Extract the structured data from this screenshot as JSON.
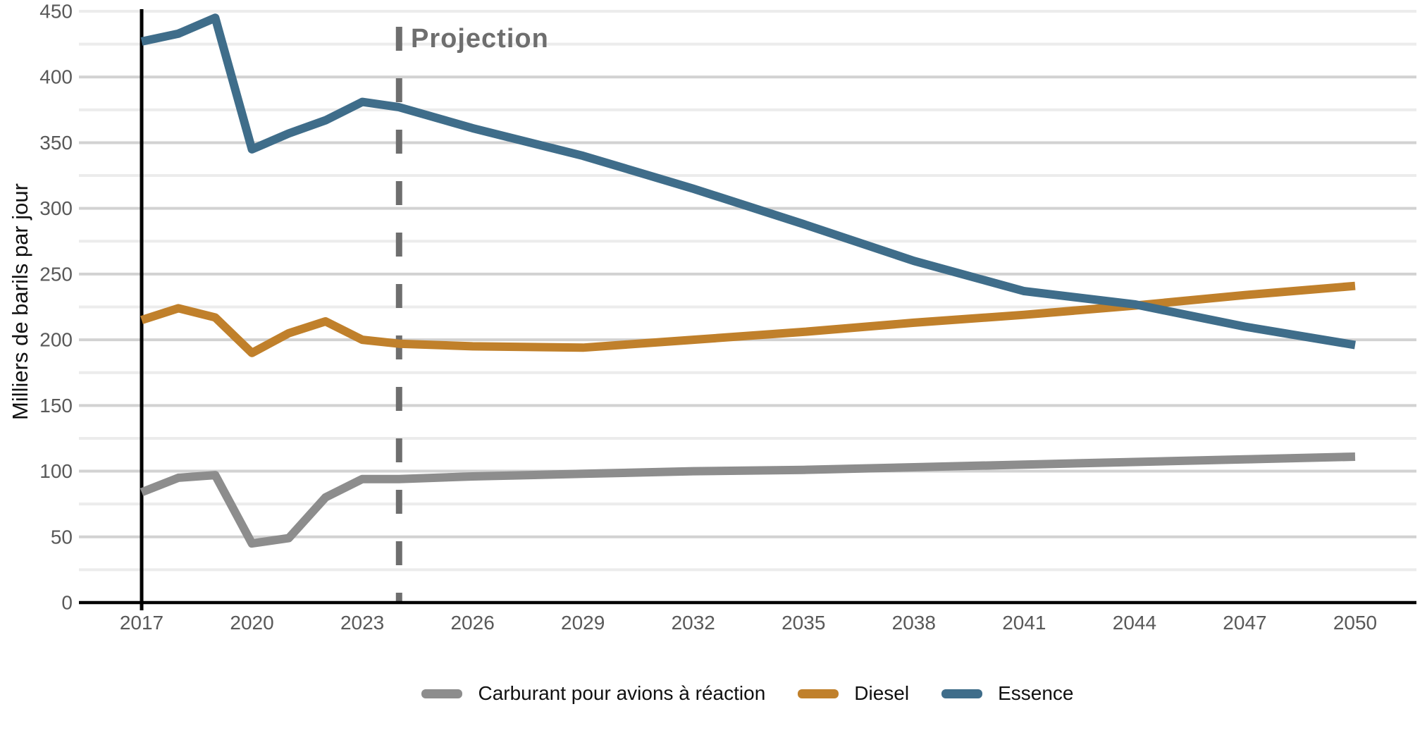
{
  "page": {
    "background": "#ffffff"
  },
  "y_axis_title": "Milliers de barils par jour",
  "projection_label": "Projection",
  "chart_data": {
    "type": "line",
    "title": "",
    "xlabel": "",
    "ylabel": "Milliers de barils par jour",
    "ylim": [
      0,
      450
    ],
    "y_tick_step": 50,
    "y_minor_grid_step": 25,
    "x_domain": [
      2017,
      2050
    ],
    "x_ticks": [
      2017,
      2020,
      2023,
      2026,
      2029,
      2032,
      2035,
      2038,
      2041,
      2044,
      2047,
      2050
    ],
    "grid": "horizontal",
    "legend_position": "bottom-center",
    "history_start_line_year": 2017,
    "projection": {
      "label": "Projection",
      "year": 2024
    },
    "colors": {
      "axis_line": "#000000",
      "start_line": "#000000",
      "projection_line": "#6e6e6e",
      "grid_major": "#d2d2d2",
      "grid_minor": "#ececec",
      "tick_label": "#595959",
      "legend_text": "#111111"
    },
    "series": [
      {
        "name": "Carburant pour avions à réaction",
        "color": "#8d8d8d",
        "points": [
          [
            2017,
            84
          ],
          [
            2018,
            95
          ],
          [
            2019,
            97
          ],
          [
            2020,
            45
          ],
          [
            2021,
            49
          ],
          [
            2022,
            80
          ],
          [
            2023,
            94
          ],
          [
            2024,
            94
          ],
          [
            2026,
            96
          ],
          [
            2029,
            98
          ],
          [
            2032,
            100
          ],
          [
            2035,
            101
          ],
          [
            2038,
            103
          ],
          [
            2041,
            105
          ],
          [
            2044,
            107
          ],
          [
            2047,
            109
          ],
          [
            2050,
            111
          ]
        ]
      },
      {
        "name": "Diesel",
        "color": "#c0802b",
        "points": [
          [
            2017,
            215
          ],
          [
            2018,
            224
          ],
          [
            2019,
            217
          ],
          [
            2020,
            190
          ],
          [
            2021,
            205
          ],
          [
            2022,
            214
          ],
          [
            2023,
            200
          ],
          [
            2024,
            197
          ],
          [
            2026,
            195
          ],
          [
            2029,
            194
          ],
          [
            2032,
            200
          ],
          [
            2035,
            206
          ],
          [
            2038,
            213
          ],
          [
            2041,
            219
          ],
          [
            2044,
            226
          ],
          [
            2047,
            234
          ],
          [
            2050,
            241
          ]
        ]
      },
      {
        "name": "Essence",
        "color": "#3f6d8a",
        "points": [
          [
            2017,
            427
          ],
          [
            2018,
            433
          ],
          [
            2019,
            445
          ],
          [
            2020,
            345
          ],
          [
            2021,
            357
          ],
          [
            2022,
            367
          ],
          [
            2023,
            381
          ],
          [
            2024,
            377
          ],
          [
            2026,
            361
          ],
          [
            2029,
            340
          ],
          [
            2032,
            315
          ],
          [
            2035,
            288
          ],
          [
            2038,
            260
          ],
          [
            2041,
            237
          ],
          [
            2044,
            227
          ],
          [
            2047,
            210
          ],
          [
            2050,
            196
          ]
        ]
      }
    ]
  }
}
